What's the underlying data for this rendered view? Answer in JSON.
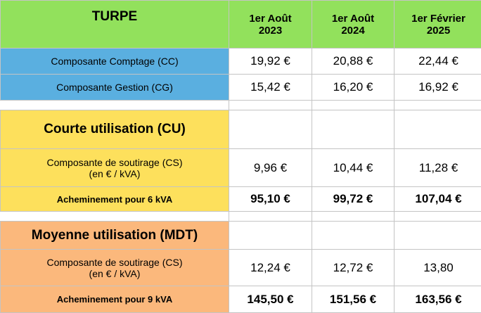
{
  "header": {
    "title": "TURPE",
    "columns": [
      "1er Août\n2023",
      "1er Août\n2024",
      "1er Février\n2025"
    ]
  },
  "rows": [
    {
      "label": "Composante Comptage (CC)",
      "values": [
        "19,92 €",
        "20,88 €",
        "22,44 €"
      ]
    },
    {
      "label": "Composante Gestion (CG)",
      "values": [
        "15,42 €",
        "16,20 €",
        "16,92 €"
      ]
    },
    {
      "label": "Courte utilisation (CU)"
    },
    {
      "label": "Composante de soutirage (CS)\n(en € / kVA)",
      "values": [
        "9,96 €",
        "10,44 €",
        "11,28 €"
      ]
    },
    {
      "label": "Acheminement pour 6 kVA",
      "values": [
        "95,10 €",
        "99,72 €",
        "107,04 €"
      ]
    },
    {
      "label": "Moyenne utilisation (MDT)"
    },
    {
      "label": "Composante de soutirage (CS)\n(en € / kVA)",
      "values": [
        "12,24 €",
        "12,72 €",
        "13,80"
      ]
    },
    {
      "label": "Acheminement pour 9 kVA",
      "values": [
        "145,50 €",
        "151,56 €",
        "163,56 €"
      ]
    }
  ]
}
